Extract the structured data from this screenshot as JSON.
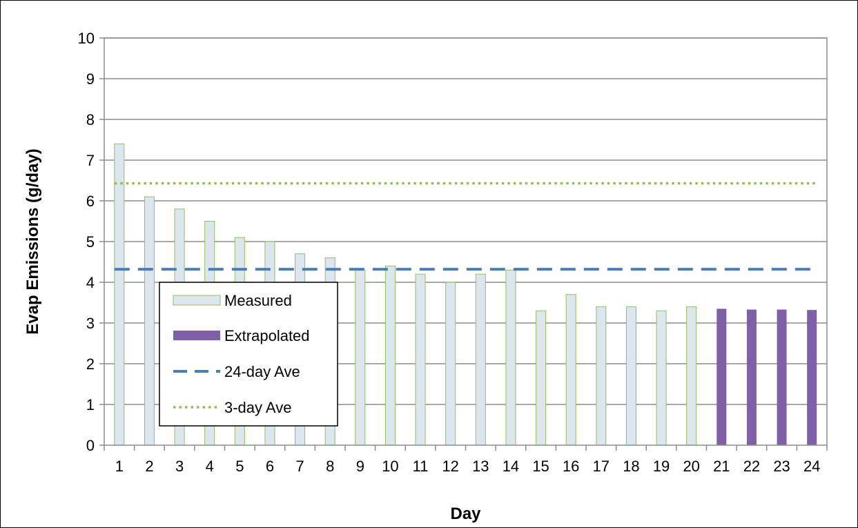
{
  "chart_data": {
    "type": "bar",
    "title": "",
    "xlabel": "Day",
    "ylabel": "Evap Emissions (g/day)",
    "ylim": [
      0,
      10
    ],
    "yticks": [
      "0",
      "1",
      "2",
      "3",
      "4",
      "5",
      "6",
      "7",
      "8",
      "9",
      "10"
    ],
    "categories": [
      "1",
      "2",
      "3",
      "4",
      "5",
      "6",
      "7",
      "8",
      "9",
      "10",
      "11",
      "12",
      "13",
      "14",
      "15",
      "16",
      "17",
      "18",
      "19",
      "20",
      "21",
      "22",
      "23",
      "24"
    ],
    "series": [
      {
        "name": "Measured",
        "kind": "bar",
        "color": "#dce6ef",
        "edge_color": "#92c05a",
        "values": [
          7.4,
          6.1,
          5.8,
          5.5,
          5.1,
          5.0,
          4.7,
          4.6,
          4.3,
          4.4,
          4.2,
          4.0,
          4.2,
          4.3,
          3.3,
          3.7,
          3.4,
          3.4,
          3.3,
          3.4,
          null,
          null,
          null,
          null
        ]
      },
      {
        "name": "Extrapolated",
        "kind": "bar",
        "color": "#7f5fa7",
        "values": [
          null,
          null,
          null,
          null,
          null,
          null,
          null,
          null,
          null,
          null,
          null,
          null,
          null,
          null,
          null,
          null,
          null,
          null,
          null,
          null,
          3.35,
          3.33,
          3.33,
          3.32
        ]
      },
      {
        "name": "24-day Ave",
        "kind": "hline",
        "line_style": "dashed",
        "color": "#4a7ebb",
        "value": 4.32
      },
      {
        "name": "3-day Ave",
        "kind": "hline",
        "line_style": "dotted",
        "color": "#8fc04a",
        "value": 6.43
      }
    ],
    "grid": true,
    "legend": "lower-left"
  }
}
